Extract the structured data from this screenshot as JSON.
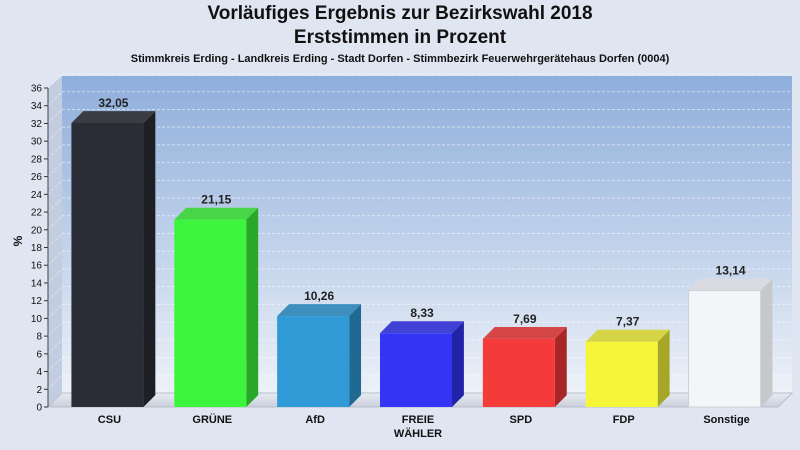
{
  "header": {
    "title_line1": "Vorläufiges Ergebnis zur Bezirkswahl 2018",
    "title_line2": "Erststimmen in Prozent",
    "subtitle": "Stimmkreis Erding - Landkreis Erding - Stadt Dorfen - Stimmbezirk Feuerwehrgerätehaus Dorfen (0004)"
  },
  "chart_data": {
    "type": "bar",
    "title": "Vorläufiges Ergebnis zur Bezirkswahl 2018 Erststimmen in Prozent",
    "subtitle": "Stimmkreis Erding - Landkreis Erding - Stadt Dorfen - Stimmbezirk Feuerwehrgerätehaus Dorfen (0004)",
    "xlabel": "",
    "ylabel": "%",
    "ylim": [
      0,
      36
    ],
    "yticks": [
      0,
      2,
      4,
      6,
      8,
      10,
      12,
      14,
      16,
      18,
      20,
      22,
      24,
      26,
      28,
      30,
      32,
      34,
      36
    ],
    "grid": true,
    "categories": [
      "CSU",
      "GRÜNE",
      "AfD",
      "FREIE WÄHLER",
      "SPD",
      "FDP",
      "Sonstige"
    ],
    "category_lines": [
      [
        "CSU"
      ],
      [
        "GRÜNE"
      ],
      [
        "AfD"
      ],
      [
        "FREIE",
        "WÄHLER"
      ],
      [
        "SPD"
      ],
      [
        "FDP"
      ],
      [
        "Sonstige"
      ]
    ],
    "values": [
      32.05,
      21.15,
      10.26,
      8.33,
      7.69,
      7.37,
      13.14
    ],
    "value_labels": [
      "32,05",
      "21,15",
      "10,26",
      "8,33",
      "7,69",
      "7,37",
      "13,14"
    ],
    "colors": [
      "#2a2d35",
      "#3df53d",
      "#2f9ad6",
      "#3434f5",
      "#f53a3a",
      "#f5f53a",
      "#f4f5f8"
    ]
  }
}
